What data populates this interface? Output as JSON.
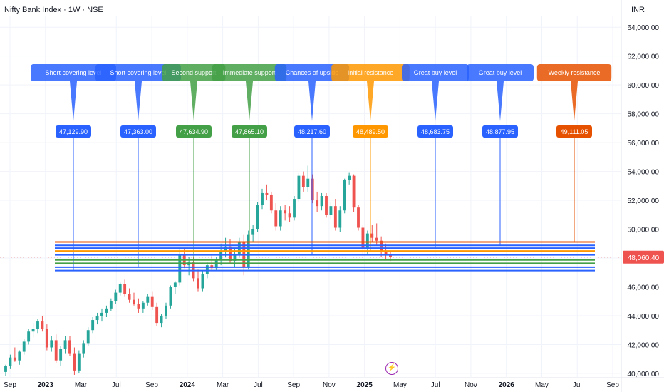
{
  "header": {
    "symbol_line": "Nifty Bank Index · 1W · NSE",
    "currency": "INR"
  },
  "colors": {
    "up": "#26a69a",
    "down": "#ef5350",
    "blue": "#2962ff",
    "green": "#43a047",
    "orange": "#ff9800",
    "deep_orange": "#e65100",
    "price_tag": "#ef5350"
  },
  "icons": {
    "event": "lightning-icon"
  },
  "chart_data": {
    "type": "candlestick",
    "title": "Nifty Bank Index · 1W · NSE",
    "ylabel": "INR",
    "ylim": [
      39700,
      64800
    ],
    "x_tick_labels": [
      "Sep",
      "2023",
      "Mar",
      "Jul",
      "Sep",
      "2024",
      "Mar",
      "Jul",
      "Sep",
      "Nov",
      "2025",
      "May",
      "Jul",
      "Nov",
      "2026",
      "May",
      "Jul",
      "Sep"
    ],
    "y_tick_labels": [
      "40,000.00",
      "42,000.00",
      "44,000.00",
      "46,000.00",
      "48,000.00",
      "50,000.00",
      "52,000.00",
      "54,000.00",
      "56,000.00",
      "58,000.00",
      "60,000.00",
      "62,000.00",
      "64,000.00"
    ],
    "last_price": "48,060.40",
    "levels": [
      {
        "label": "Short covering level",
        "value": "47,129.90",
        "color": "blue"
      },
      {
        "label": "Short covering level",
        "value": "47,363.00",
        "color": "blue"
      },
      {
        "label": "Second support",
        "value": "47,634.90",
        "color": "green"
      },
      {
        "label": "Immediate support",
        "value": "47,865.10",
        "color": "green"
      },
      {
        "label": "Chances of upside",
        "value": "48,217.60",
        "color": "blue"
      },
      {
        "label": "Initial resistance",
        "value": "48,489.50",
        "color": "orange"
      },
      {
        "label": "Great buy level",
        "value": "48,683.75",
        "color": "blue"
      },
      {
        "label": "Great buy level",
        "value": "48,877.95",
        "color": "blue"
      },
      {
        "label": "Weekly resistance",
        "value": "49,111.05",
        "color": "deep_orange"
      }
    ],
    "candles": [
      [
        40100,
        40600,
        39800,
        40500
      ],
      [
        40500,
        41300,
        40300,
        41100
      ],
      [
        41100,
        41800,
        40800,
        40900
      ],
      [
        40900,
        41600,
        40600,
        41500
      ],
      [
        41500,
        42400,
        41300,
        42200
      ],
      [
        42200,
        43100,
        42000,
        42900
      ],
      [
        42900,
        43500,
        42500,
        43100
      ],
      [
        43100,
        43800,
        42800,
        43600
      ],
      [
        43600,
        44000,
        42900,
        43100
      ],
      [
        43100,
        43400,
        41600,
        41800
      ],
      [
        41800,
        42600,
        41500,
        42300
      ],
      [
        42300,
        42700,
        40700,
        40900
      ],
      [
        40900,
        41900,
        40500,
        41700
      ],
      [
        41700,
        42600,
        41400,
        42300
      ],
      [
        42300,
        42600,
        41200,
        41400
      ],
      [
        41400,
        41800,
        39900,
        40200
      ],
      [
        40200,
        41600,
        40000,
        41400
      ],
      [
        41400,
        42300,
        41100,
        42100
      ],
      [
        42100,
        43200,
        41900,
        43000
      ],
      [
        43000,
        43900,
        42800,
        43700
      ],
      [
        43700,
        44200,
        43400,
        44000
      ],
      [
        44000,
        44500,
        43600,
        44200
      ],
      [
        44200,
        44700,
        43900,
        44500
      ],
      [
        44500,
        45200,
        44300,
        45000
      ],
      [
        45000,
        45800,
        44800,
        45600
      ],
      [
        45600,
        46300,
        45400,
        46200
      ],
      [
        46200,
        46500,
        45300,
        45500
      ],
      [
        45500,
        45900,
        44900,
        45100
      ],
      [
        45100,
        45600,
        44700,
        44800
      ],
      [
        44800,
        45200,
        44200,
        44500
      ],
      [
        44500,
        45000,
        44200,
        44900
      ],
      [
        44900,
        45500,
        44700,
        45300
      ],
      [
        45300,
        45700,
        44400,
        44600
      ],
      [
        44600,
        44900,
        43300,
        43500
      ],
      [
        43500,
        44100,
        43200,
        44000
      ],
      [
        44000,
        44900,
        43800,
        44700
      ],
      [
        44700,
        46100,
        44500,
        46000
      ],
      [
        46000,
        46400,
        45500,
        46300
      ],
      [
        46300,
        48600,
        46100,
        48200
      ],
      [
        48200,
        48700,
        47300,
        47500
      ],
      [
        47500,
        48100,
        46800,
        47700
      ],
      [
        47700,
        48100,
        46400,
        46600
      ],
      [
        46600,
        47200,
        45700,
        45900
      ],
      [
        45900,
        47100,
        45700,
        46900
      ],
      [
        46900,
        47700,
        46600,
        47500
      ],
      [
        47500,
        48200,
        47100,
        47300
      ],
      [
        47300,
        48100,
        47100,
        47900
      ],
      [
        47900,
        49000,
        47500,
        48400
      ],
      [
        48400,
        49400,
        48100,
        48800
      ],
      [
        48800,
        49300,
        47600,
        47800
      ],
      [
        47800,
        48600,
        47400,
        48300
      ],
      [
        48300,
        49400,
        48100,
        49100
      ],
      [
        49100,
        49600,
        46800,
        47400
      ],
      [
        47400,
        49900,
        47200,
        49600
      ],
      [
        49600,
        50300,
        49100,
        50000
      ],
      [
        50000,
        51900,
        49800,
        51700
      ],
      [
        51700,
        52800,
        51400,
        52500
      ],
      [
        52500,
        53100,
        52000,
        52400
      ],
      [
        52400,
        52600,
        51100,
        51300
      ],
      [
        51300,
        51800,
        49900,
        50200
      ],
      [
        50200,
        51600,
        49900,
        51300
      ],
      [
        51300,
        51700,
        50600,
        51100
      ],
      [
        51100,
        51600,
        50500,
        50800
      ],
      [
        50800,
        52300,
        50600,
        52100
      ],
      [
        52100,
        53900,
        51900,
        53700
      ],
      [
        53700,
        54000,
        52600,
        52900
      ],
      [
        52900,
        54400,
        52600,
        53500
      ],
      [
        53500,
        53800,
        51800,
        52000
      ],
      [
        52000,
        52600,
        51200,
        51600
      ],
      [
        51600,
        52500,
        51300,
        52300
      ],
      [
        52300,
        52500,
        50800,
        51000
      ],
      [
        51000,
        51900,
        50700,
        51600
      ],
      [
        51600,
        52100,
        49900,
        50100
      ],
      [
        50100,
        51600,
        49800,
        51300
      ],
      [
        51300,
        53500,
        51100,
        53400
      ],
      [
        53400,
        53900,
        53100,
        53700
      ],
      [
        53700,
        53800,
        51200,
        51500
      ],
      [
        51500,
        51700,
        49900,
        50100
      ],
      [
        50100,
        50300,
        48300,
        48600
      ],
      [
        48600,
        49900,
        48200,
        49700
      ],
      [
        49700,
        50300,
        49100,
        49400
      ],
      [
        49400,
        50400,
        48900,
        49200
      ],
      [
        49200,
        49500,
        48100,
        48500
      ],
      [
        48500,
        49000,
        47900,
        48200
      ],
      [
        48200,
        48500,
        47800,
        48060
      ]
    ]
  }
}
